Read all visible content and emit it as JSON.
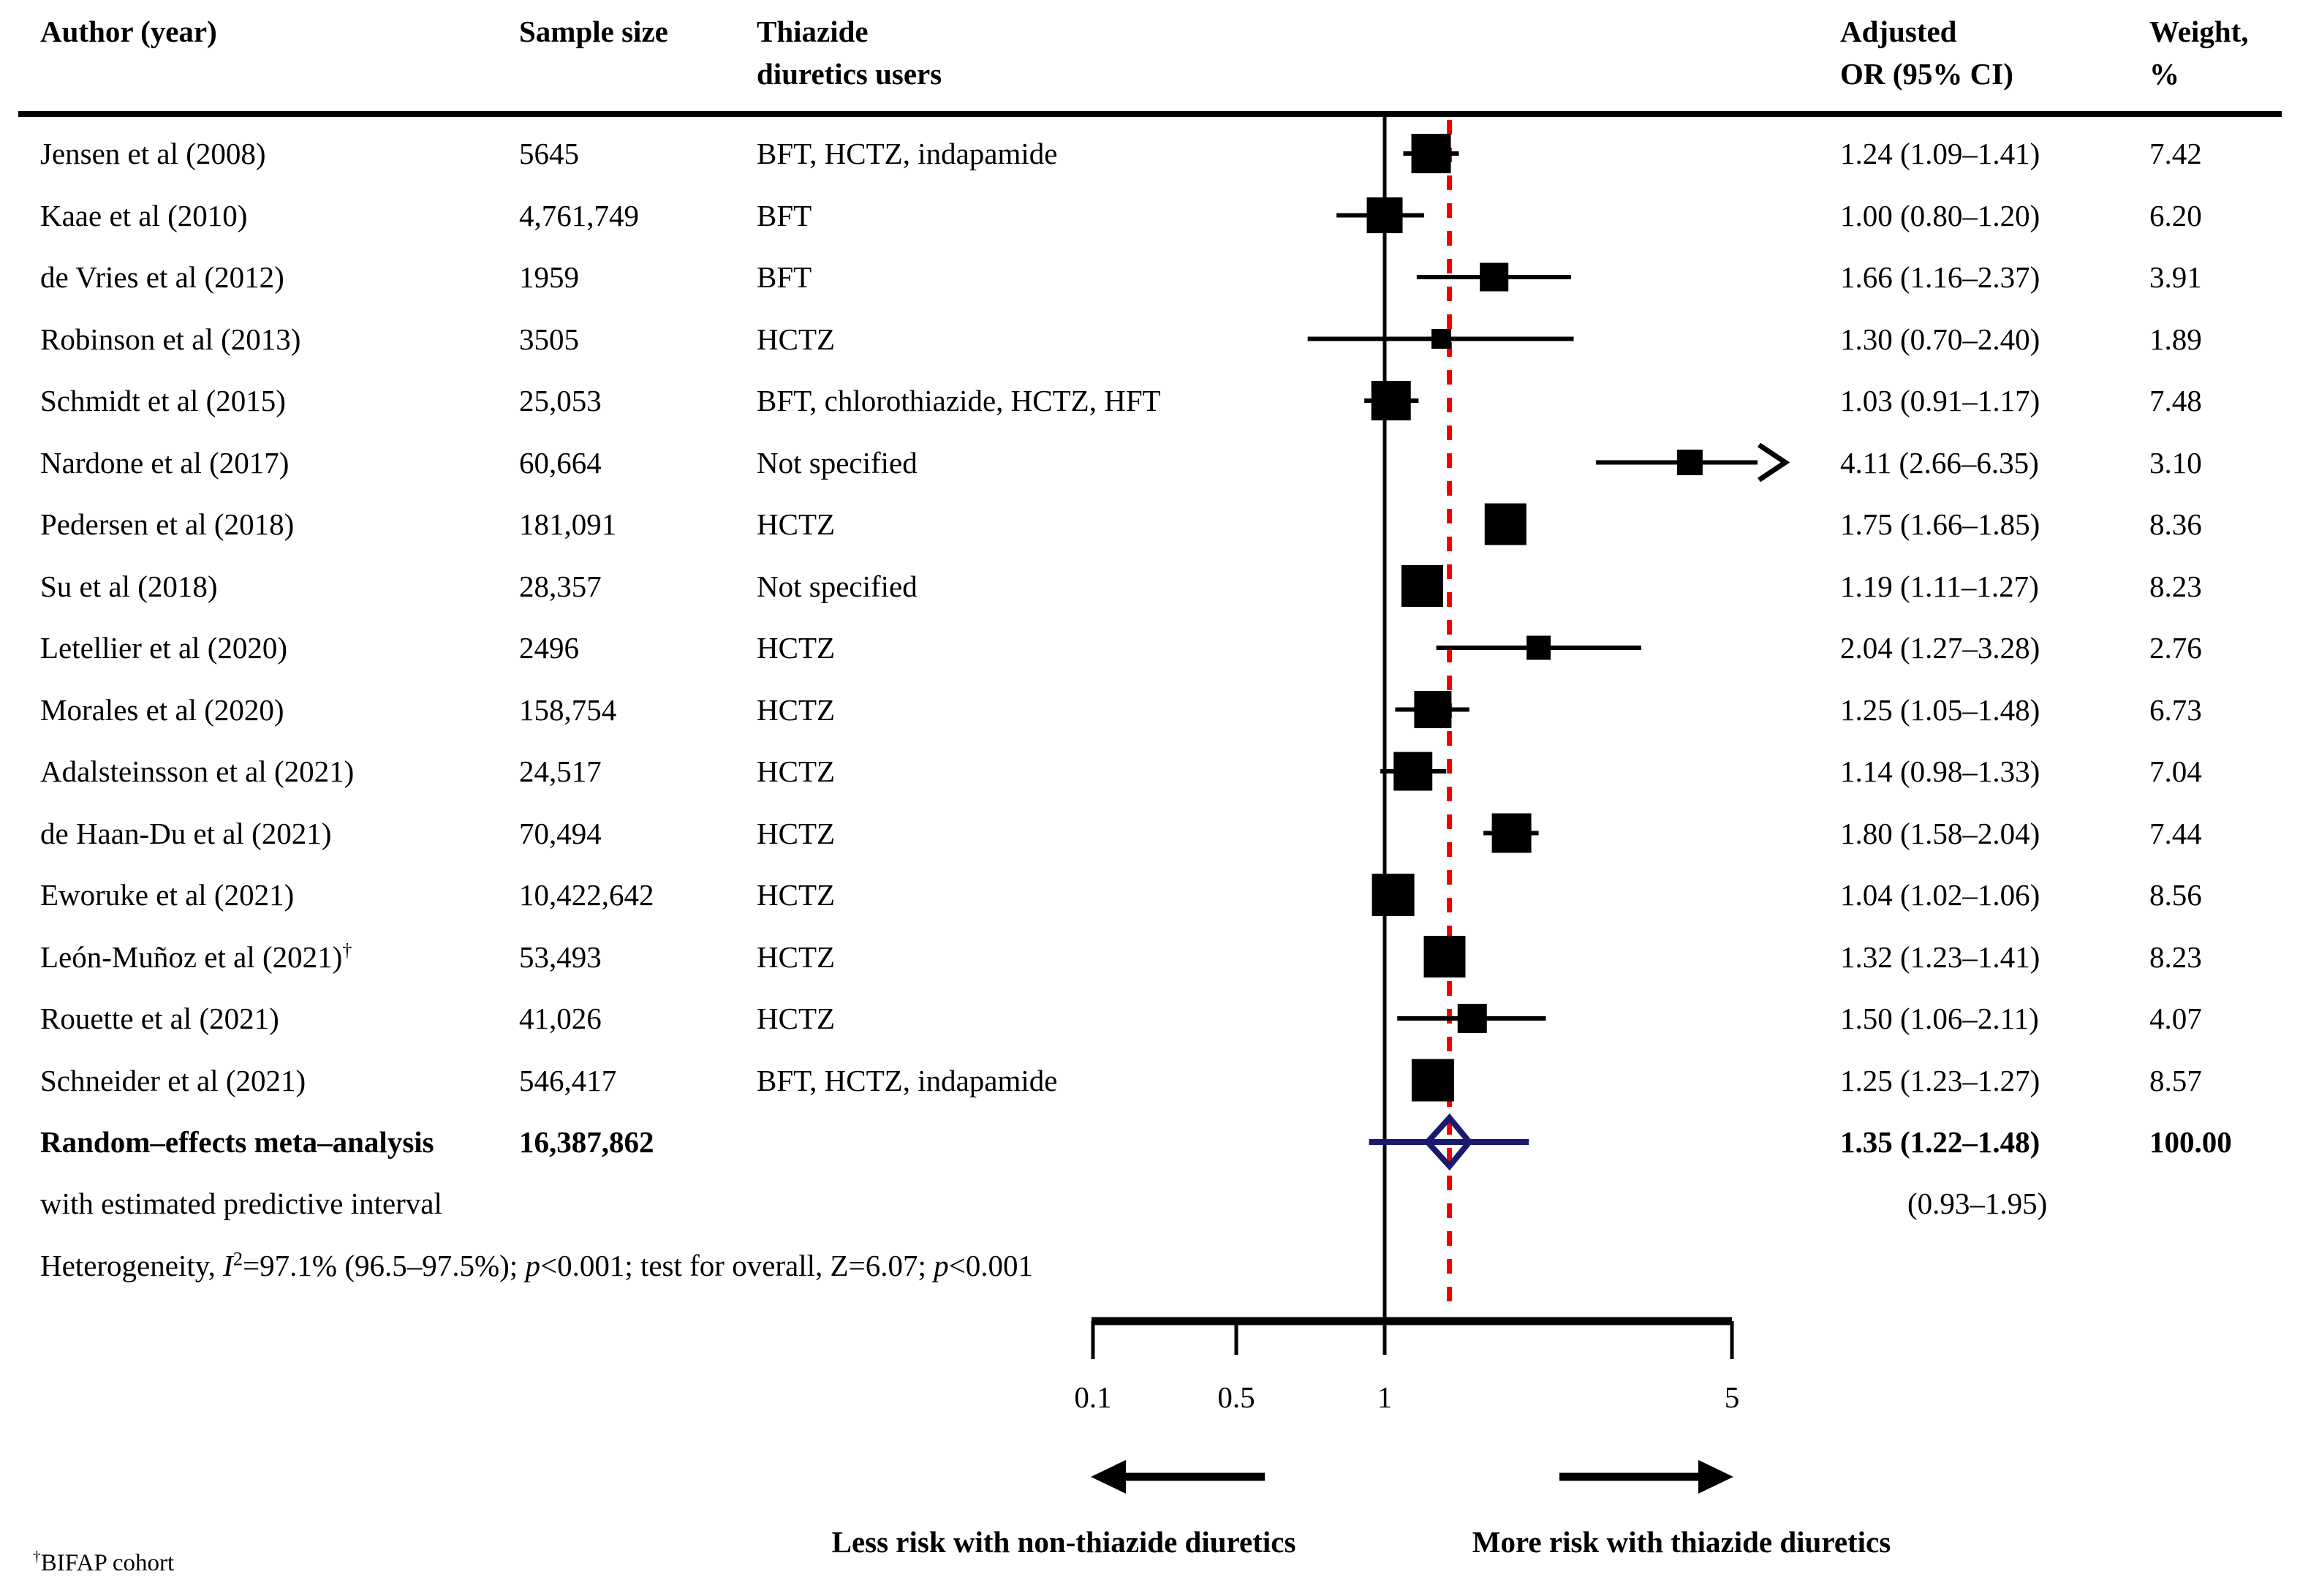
{
  "table": {
    "headers": {
      "author": "Author (year)",
      "sample": "Sample size",
      "users_line1": "Thiazide",
      "users_line2": "diuretics users",
      "or_line1": "Adjusted",
      "or_line2": "OR (95% CI)",
      "weight_line1": "Weight,",
      "weight_line2": "%"
    },
    "rows": [
      {
        "author": "Jensen et al (2008)",
        "sup": "",
        "sample": "5645",
        "users": "BFT, HCTZ, indapamide",
        "or_text": "1.24 (1.09–1.41)",
        "weight_text": "7.42"
      },
      {
        "author": "Kaae et al (2010)",
        "sup": "",
        "sample": "4,761,749",
        "users": "BFT",
        "or_text": "1.00 (0.80–1.20)",
        "weight_text": "6.20"
      },
      {
        "author": "de Vries et al (2012)",
        "sup": "",
        "sample": "1959",
        "users": "BFT",
        "or_text": "1.66 (1.16–2.37)",
        "weight_text": "3.91"
      },
      {
        "author": "Robinson et al (2013)",
        "sup": "",
        "sample": "3505",
        "users": "HCTZ",
        "or_text": "1.30 (0.70–2.40)",
        "weight_text": "1.89"
      },
      {
        "author": "Schmidt et al (2015)",
        "sup": "",
        "sample": "25,053",
        "users": "BFT, chlorothiazide, HCTZ, HFT",
        "or_text": "1.03 (0.91–1.17)",
        "weight_text": "7.48"
      },
      {
        "author": "Nardone et al (2017)",
        "sup": "",
        "sample": "60,664",
        "users": "Not specified",
        "or_text": "4.11 (2.66–6.35)",
        "weight_text": "3.10"
      },
      {
        "author": "Pedersen et al (2018)",
        "sup": "",
        "sample": "181,091",
        "users": "HCTZ",
        "or_text": "1.75 (1.66–1.85)",
        "weight_text": "8.36"
      },
      {
        "author": "Su et al (2018)",
        "sup": "",
        "sample": "28,357",
        "users": "Not specified",
        "or_text": "1.19 (1.11–1.27)",
        "weight_text": "8.23"
      },
      {
        "author": "Letellier et al (2020)",
        "sup": "",
        "sample": "2496",
        "users": "HCTZ",
        "or_text": "2.04 (1.27–3.28)",
        "weight_text": "2.76"
      },
      {
        "author": "Morales et al (2020)",
        "sup": "",
        "sample": "158,754",
        "users": "HCTZ",
        "or_text": "1.25 (1.05–1.48)",
        "weight_text": "6.73"
      },
      {
        "author": "Adalsteinsson et al (2021)",
        "sup": "",
        "sample": "24,517",
        "users": "HCTZ",
        "or_text": "1.14 (0.98–1.33)",
        "weight_text": "7.04"
      },
      {
        "author": "de Haan-Du et al (2021)",
        "sup": "",
        "sample": "70,494",
        "users": "HCTZ",
        "or_text": "1.80 (1.58–2.04)",
        "weight_text": "7.44"
      },
      {
        "author": "Eworuke et al (2021)",
        "sup": "",
        "sample": "10,422,642",
        "users": "HCTZ",
        "or_text": "1.04 (1.02–1.06)",
        "weight_text": "8.56"
      },
      {
        "author": "León-Muñoz et al (2021)",
        "sup": "†",
        "sample": "53,493",
        "users": "HCTZ",
        "or_text": "1.32 (1.23–1.41)",
        "weight_text": "8.23"
      },
      {
        "author": "Rouette et al (2021)",
        "sup": "",
        "sample": "41,026",
        "users": "HCTZ",
        "or_text": "1.50 (1.06–2.11)",
        "weight_text": "4.07"
      },
      {
        "author": "Schneider et al (2021)",
        "sup": "",
        "sample": "546,417",
        "users": "BFT, HCTZ, indapamide",
        "or_text": "1.25 (1.23–1.27)",
        "weight_text": "8.57"
      }
    ],
    "summary_row": {
      "author": "Random–effects meta–analysis",
      "sample": "16,387,862",
      "or_text": "1.35 (1.22–1.48)",
      "weight_text": "100.00"
    },
    "predictive_row": {
      "author": "with estimated predictive interval",
      "or_text": "(0.93–1.95)"
    },
    "heterogeneity_segments": [
      {
        "text": "Heterogeneity, ",
        "style": "normal"
      },
      {
        "text": "I",
        "style": "italic"
      },
      {
        "text": "2",
        "style": "sup"
      },
      {
        "text": "=97.1% (96.5–97.5%); ",
        "style": "normal"
      },
      {
        "text": "p",
        "style": "italic"
      },
      {
        "text": "<0.001; test for overall, Z=6.07; ",
        "style": "normal"
      },
      {
        "text": "p",
        "style": "italic"
      },
      {
        "text": "<0.001",
        "style": "normal"
      }
    ]
  },
  "chart_data": {
    "type": "forest",
    "title": "",
    "x_axis": {
      "scale": "log",
      "range": [
        0.1,
        5
      ],
      "ticks": [
        "0.1",
        "0.5",
        "1",
        "5"
      ],
      "reference_line": 1,
      "pooled_effect_line": 1.35
    },
    "studies": [
      {
        "label": "Jensen et al (2008)",
        "or": 1.24,
        "lo": 1.09,
        "hi": 1.41,
        "weight": 7.42,
        "arrow": false
      },
      {
        "label": "Kaae et al (2010)",
        "or": 1.0,
        "lo": 0.8,
        "hi": 1.2,
        "weight": 6.2,
        "arrow": false
      },
      {
        "label": "de Vries et al (2012)",
        "or": 1.66,
        "lo": 1.16,
        "hi": 2.37,
        "weight": 3.91,
        "arrow": false
      },
      {
        "label": "Robinson et al (2013)",
        "or": 1.3,
        "lo": 0.7,
        "hi": 2.4,
        "weight": 1.89,
        "arrow": false
      },
      {
        "label": "Schmidt et al (2015)",
        "or": 1.03,
        "lo": 0.91,
        "hi": 1.17,
        "weight": 7.48,
        "arrow": false
      },
      {
        "label": "Nardone et al (2017)",
        "or": 4.11,
        "lo": 2.66,
        "hi": 6.35,
        "weight": 3.1,
        "arrow": true
      },
      {
        "label": "Pedersen et al (2018)",
        "or": 1.75,
        "lo": 1.66,
        "hi": 1.85,
        "weight": 8.36,
        "arrow": false
      },
      {
        "label": "Su et al (2018)",
        "or": 1.19,
        "lo": 1.11,
        "hi": 1.27,
        "weight": 8.23,
        "arrow": false
      },
      {
        "label": "Letellier et al (2020)",
        "or": 2.04,
        "lo": 1.27,
        "hi": 3.28,
        "weight": 2.76,
        "arrow": false
      },
      {
        "label": "Morales et al (2020)",
        "or": 1.25,
        "lo": 1.05,
        "hi": 1.48,
        "weight": 6.73,
        "arrow": false
      },
      {
        "label": "Adalsteinsson et al (2021)",
        "or": 1.14,
        "lo": 0.98,
        "hi": 1.33,
        "weight": 7.04,
        "arrow": false
      },
      {
        "label": "de Haan-Du et al (2021)",
        "or": 1.8,
        "lo": 1.58,
        "hi": 2.04,
        "weight": 7.44,
        "arrow": false
      },
      {
        "label": "Eworuke et al (2021)",
        "or": 1.04,
        "lo": 1.02,
        "hi": 1.06,
        "weight": 8.56,
        "arrow": false
      },
      {
        "label": "León-Muñoz et al (2021)",
        "or": 1.32,
        "lo": 1.23,
        "hi": 1.41,
        "weight": 8.23,
        "arrow": false
      },
      {
        "label": "Rouette et al (2021)",
        "or": 1.5,
        "lo": 1.06,
        "hi": 2.11,
        "weight": 4.07,
        "arrow": false
      },
      {
        "label": "Schneider et al (2021)",
        "or": 1.25,
        "lo": 1.23,
        "hi": 1.27,
        "weight": 8.57,
        "arrow": false
      }
    ],
    "summary": {
      "or": 1.35,
      "lo": 1.22,
      "hi": 1.48,
      "predictive_lo": 0.93,
      "predictive_hi": 1.95,
      "weight": 100.0
    }
  },
  "footer": {
    "left_arrow_label": "Less risk with non-thiazide diuretics",
    "right_arrow_label": "More risk with thiazide diuretics",
    "footnote_symbol": "†",
    "footnote_text": "BIFAP cohort"
  },
  "colors": {
    "marker": "#000000",
    "pooled_line_red": "#ee0000",
    "diamond_navy": "#191970",
    "text": "#000000"
  }
}
